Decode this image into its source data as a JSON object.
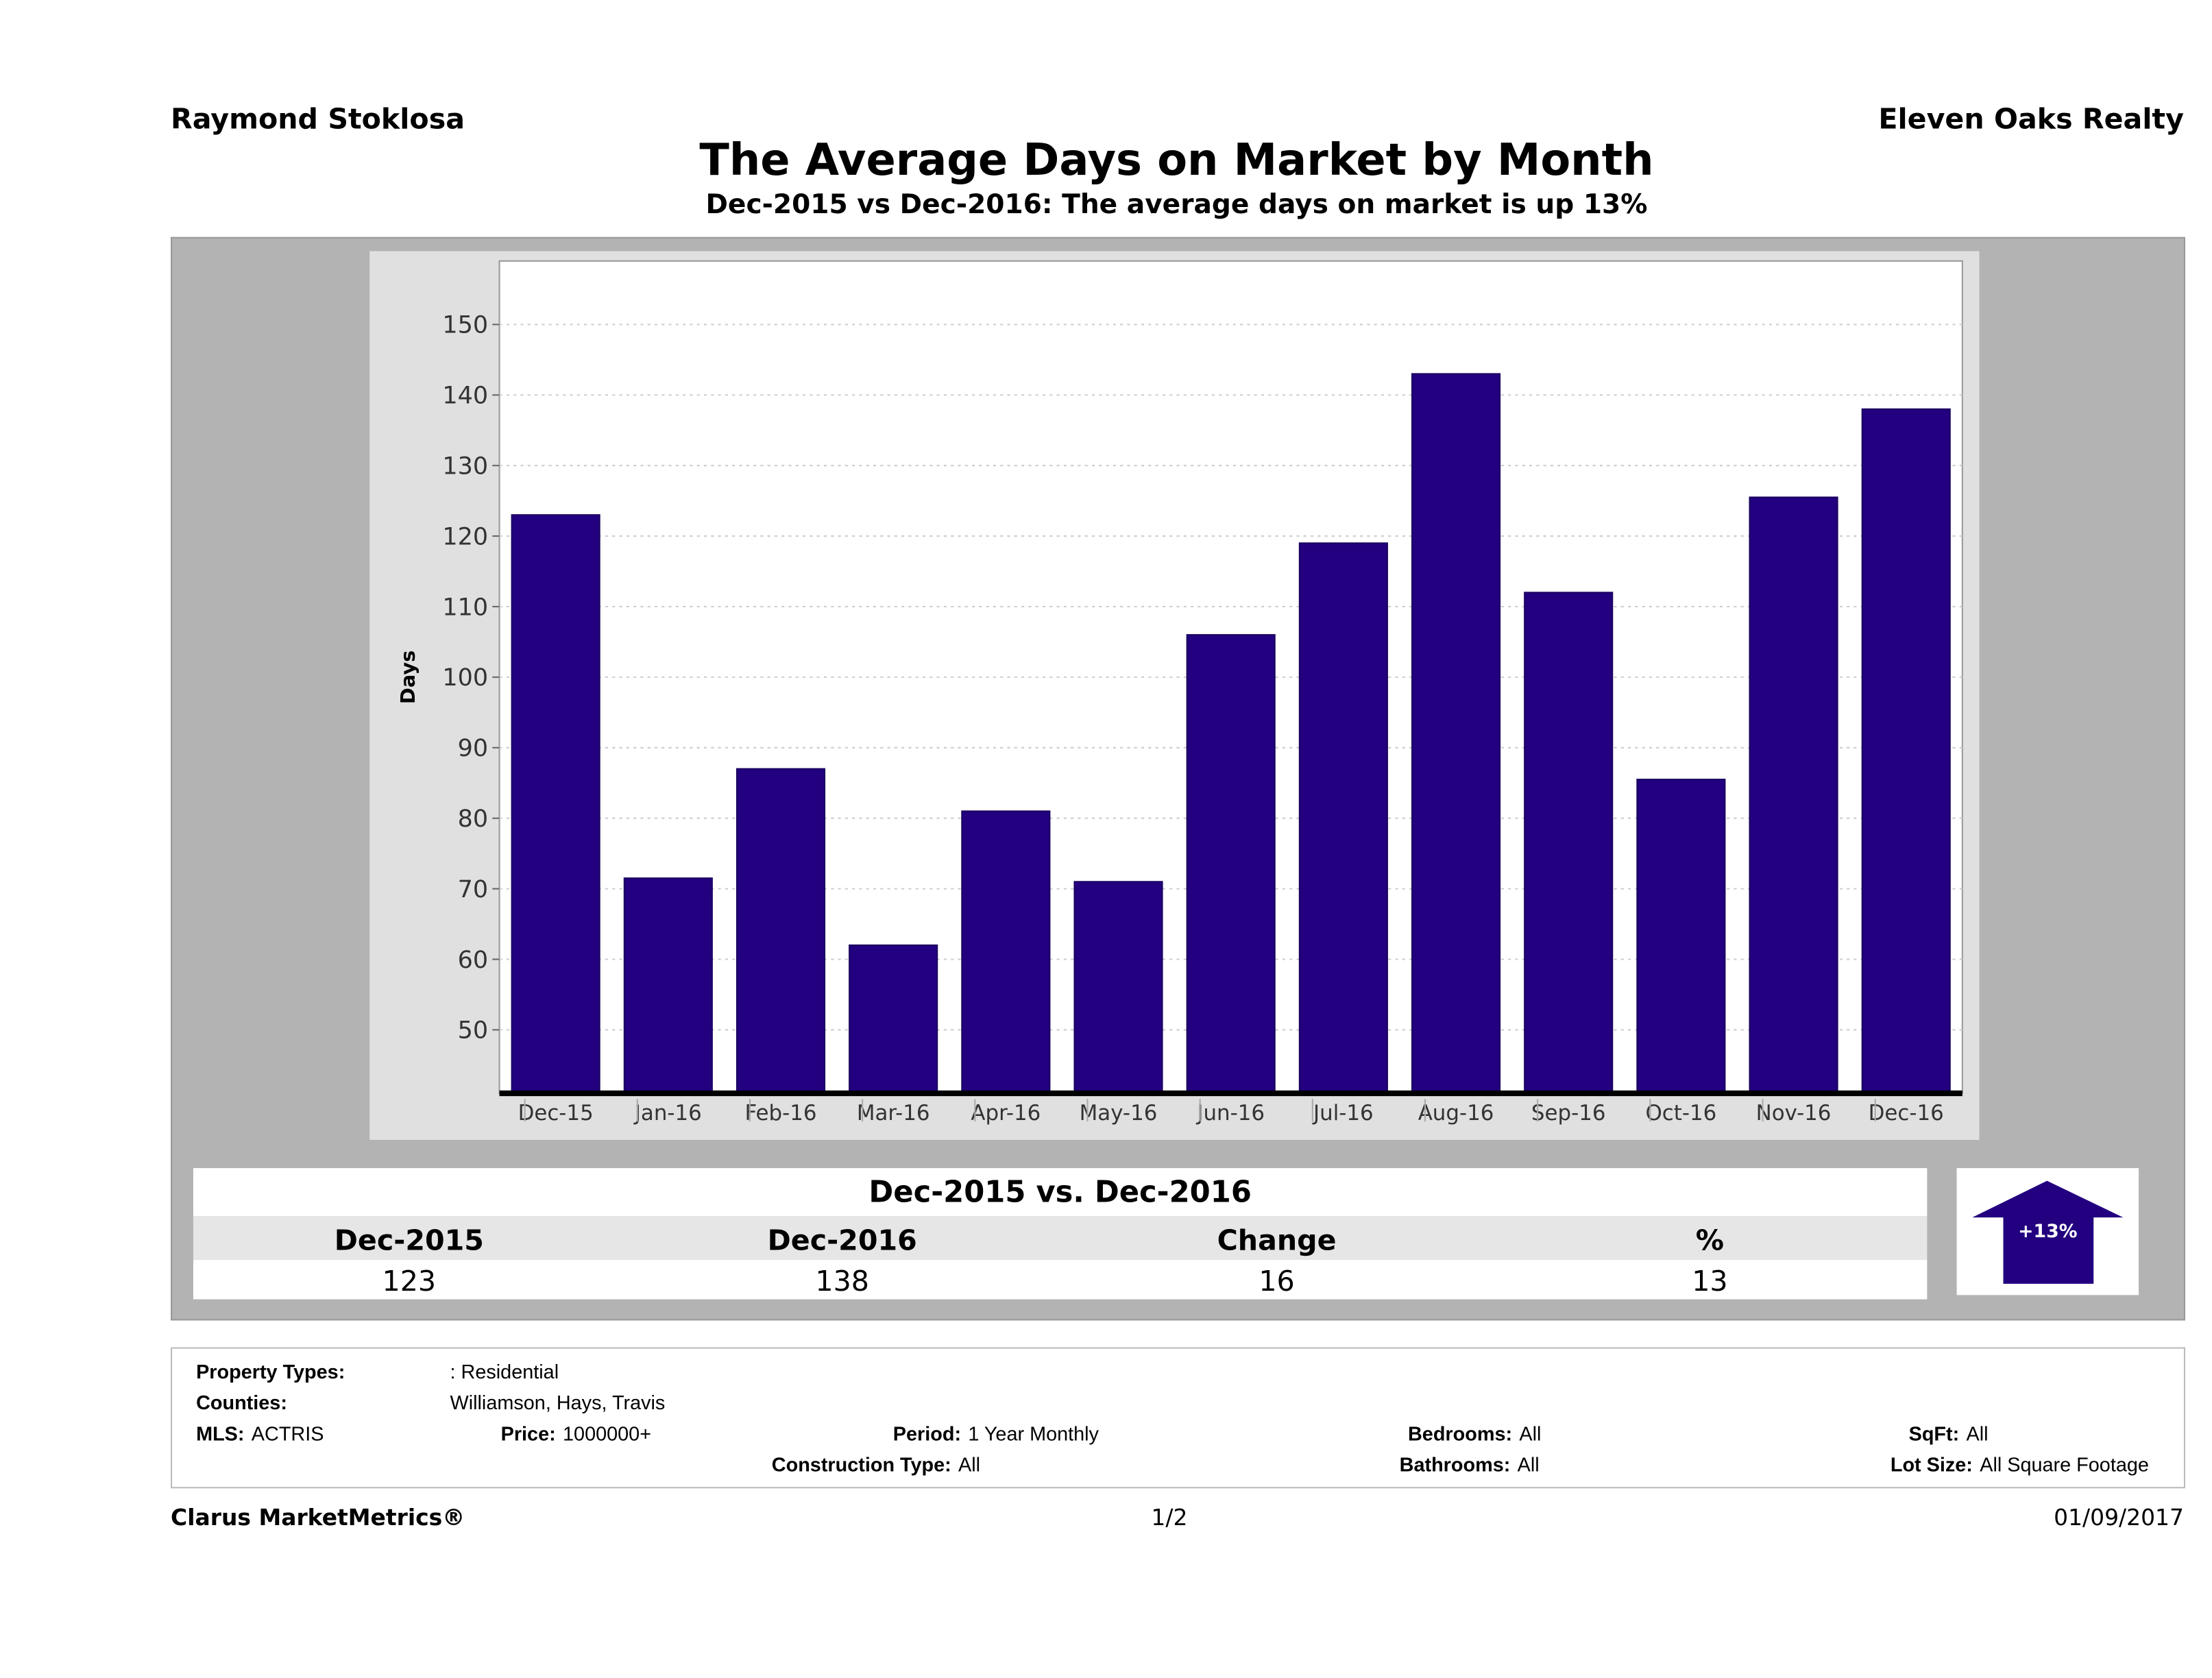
{
  "header": {
    "agent": "Raymond Stoklosa",
    "company": "Eleven Oaks Realty",
    "title": "The Average Days on Market by Month",
    "subtitle": "Dec-2015 vs Dec-2016: The average days on market is up 13%"
  },
  "chart_data": {
    "type": "bar",
    "title": "The Average Days on Market by Month",
    "xlabel": "",
    "ylabel": "Days",
    "categories": [
      "Dec-15",
      "Jan-16",
      "Feb-16",
      "Mar-16",
      "Apr-16",
      "May-16",
      "Jun-16",
      "Jul-16",
      "Aug-16",
      "Sep-16",
      "Oct-16",
      "Nov-16",
      "Dec-16"
    ],
    "values": [
      123,
      71.5,
      87,
      62,
      81,
      71,
      106,
      119,
      143,
      112,
      85.5,
      125.5,
      138
    ],
    "yticks": [
      50,
      60,
      70,
      80,
      90,
      100,
      110,
      120,
      130,
      140,
      150
    ],
    "ylim": [
      41,
      159
    ],
    "grid": true,
    "bar_color": "#22007f"
  },
  "summary": {
    "title": "Dec-2015 vs. Dec-2016",
    "headers": [
      "Dec-2015",
      "Dec-2016",
      "Change",
      "%"
    ],
    "values": [
      "123",
      "138",
      "16",
      "13"
    ],
    "badge": "+13%"
  },
  "filters": {
    "property_types_label": "Property Types:",
    "property_types": ": Residential",
    "counties_label": "Counties:",
    "counties": "Williamson, Hays, Travis",
    "mls_label": "MLS:",
    "mls": "ACTRIS",
    "price_label": "Price:",
    "price": "1000000+",
    "period_label": "Period:",
    "period": "1 Year Monthly",
    "construction_label": "Construction Type:",
    "construction": "All",
    "bedrooms_label": "Bedrooms:",
    "bedrooms": "All",
    "bathrooms_label": "Bathrooms:",
    "bathrooms": "All",
    "sqft_label": "SqFt:",
    "sqft": "All",
    "lot_label": "Lot Size:",
    "lot": "All Square Footage"
  },
  "footer": {
    "brand": "Clarus MarketMetrics®",
    "page": "1/2",
    "date": "01/09/2017"
  }
}
